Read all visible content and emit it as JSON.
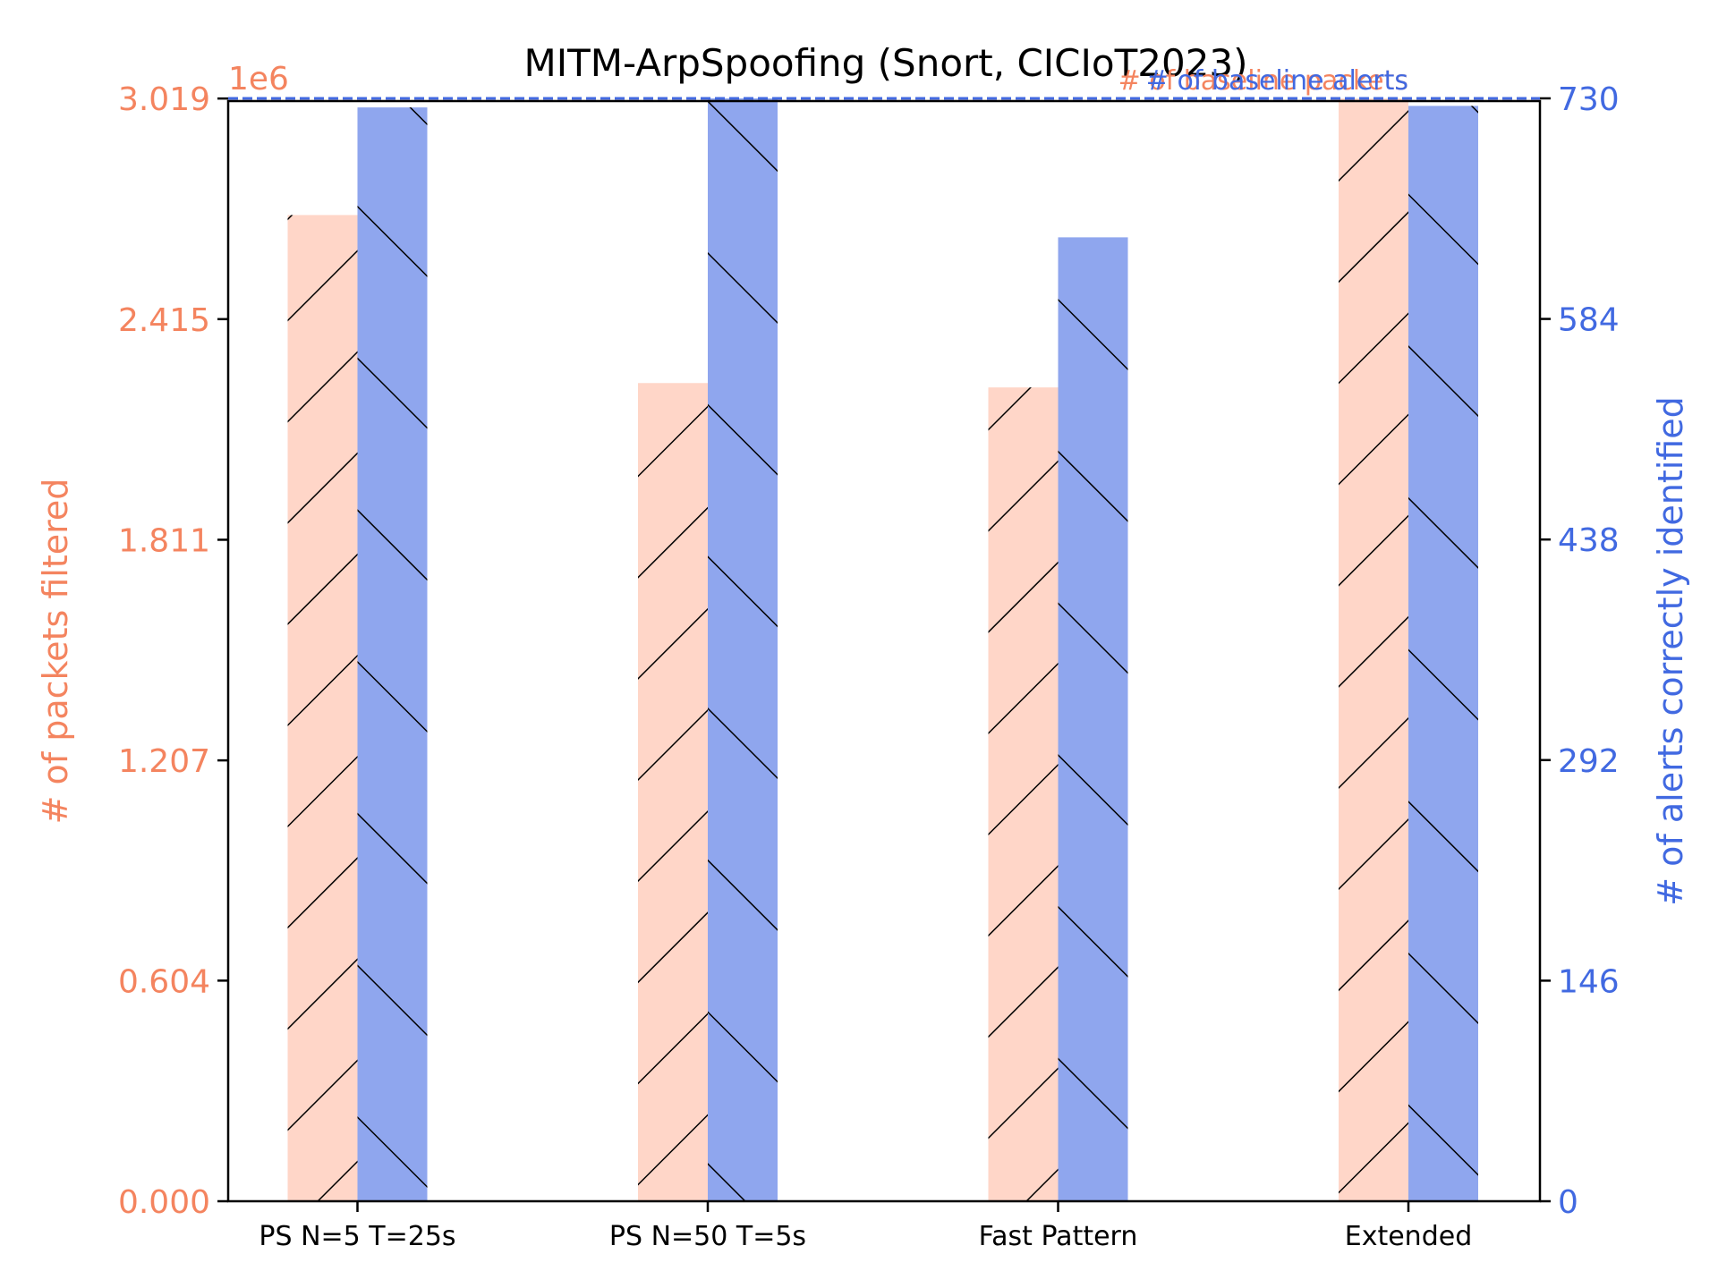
{
  "chart_data": {
    "type": "bar",
    "title": "MITM-ArpSpoofing (Snort, CICIoT2023)",
    "categories": [
      "PS N=5 T=25s",
      "PS N=50 T=5s",
      "Fast Pattern",
      "Extended"
    ],
    "series": [
      {
        "name": "",
        "axis": "left",
        "values": [
          2700000,
          2240000,
          2228000,
          3019000
        ]
      },
      {
        "name": "",
        "axis": "right",
        "values": [
          724,
          730,
          638,
          725
        ]
      }
    ],
    "ylabel_left": "# of packets filtered",
    "ylabel_right": "# of alerts correctly identified",
    "left_axis": {
      "multiplier": "1e6",
      "ylim": [
        0,
        3.012
      ],
      "ticks": [
        0,
        0.604,
        1.207,
        1.811,
        2.415,
        3.019
      ],
      "tick_labels": [
        "0.000",
        "0.604",
        "1.207",
        "1.811",
        "2.415",
        "3.019"
      ]
    },
    "right_axis": {
      "ylim": [
        0,
        728.2
      ],
      "ticks": [
        0,
        146,
        292,
        438,
        584,
        730
      ],
      "tick_labels": [
        "0",
        "146",
        "292",
        "438",
        "584",
        "730"
      ]
    },
    "reference_lines": [
      {
        "label": "# of baseline packets",
        "axis": "left",
        "value": 3.019
      },
      {
        "label": "# of baseline alerts",
        "axis": "right",
        "value": 730
      }
    ],
    "colors": {
      "left": "#F4845F",
      "right": "#4169E1",
      "left_bar_fill": "#FFD6C8",
      "right_bar_fill": "#8FA6EE"
    },
    "grid": false,
    "legend": "none"
  }
}
